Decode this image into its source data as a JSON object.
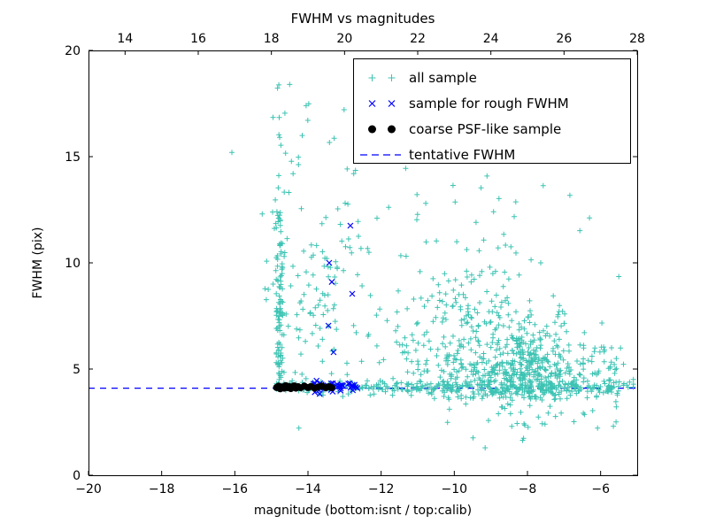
{
  "chart_data": {
    "type": "scatter",
    "title": "FWHM vs magnitudes",
    "xlabel": "magnitude (bottom:isnt / top:calib)",
    "ylabel": "FWHM (pix)",
    "xlim": [
      -20,
      -5
    ],
    "ylim": [
      0,
      20
    ],
    "grid": false,
    "legend_position": "upper right",
    "x_ticks": [
      -20,
      -18,
      -16,
      -14,
      -12,
      -10,
      -8,
      -6
    ],
    "x_tick_labels": [
      "−20",
      "−18",
      "−16",
      "−14",
      "−12",
      "−10",
      "−8",
      "−6"
    ],
    "y_ticks": [
      0,
      5,
      10,
      15,
      20
    ],
    "y_tick_labels": [
      "0",
      "5",
      "10",
      "15",
      "20"
    ],
    "top_axis_ticks": [
      14,
      16,
      18,
      20,
      22,
      24,
      26,
      28
    ],
    "top_axis_tick_labels": [
      "14",
      "16",
      "18",
      "20",
      "22",
      "24",
      "26",
      "28"
    ],
    "top_to_bottom_offset": -33,
    "tentative_fwhm": 4.1,
    "colors": {
      "all_sample": "#3cc3b3",
      "rough": "#0000ff",
      "psf": "#000000",
      "tentative_line": "#0000ff"
    },
    "series": [
      {
        "id": "all-sample",
        "name": "all sample",
        "marker": "plus",
        "color": "#3cc3b3",
        "clusters": [
          {
            "dist": "vstreak",
            "cx": -14.78,
            "sx": 0.07,
            "y": [
              4.0,
              12.8
            ],
            "n": 110
          },
          {
            "dist": "vstreak",
            "cx": -14.72,
            "sx": 0.12,
            "y": [
              12.8,
              18.5
            ],
            "n": 14
          },
          {
            "dist": "gauss",
            "cx": -13.6,
            "cy": 8.6,
            "sx": 0.55,
            "sy": 2.1,
            "n": 70
          },
          {
            "dist": "uniform",
            "x": [
              -14.55,
              -12.35
            ],
            "y": [
              4.5,
              17.5
            ],
            "n": 45
          },
          {
            "dist": "band",
            "x": [
              -14.9,
              -5.1
            ],
            "cy": 4.15,
            "sy": 0.17,
            "n": 300
          },
          {
            "dist": "tail",
            "cx": -9.0,
            "sx": 1.25,
            "ybase": 3.6,
            "yscale": 2.2,
            "n": 420
          },
          {
            "dist": "gauss",
            "cx": -7.8,
            "cy": 4.9,
            "sx": 0.65,
            "sy": 0.85,
            "n": 190
          },
          {
            "dist": "gauss",
            "cx": -5.95,
            "cy": 4.8,
            "sx": 0.45,
            "sy": 0.8,
            "n": 45
          },
          {
            "dist": "tail",
            "cx": -9.6,
            "sx": 1.4,
            "ybase": 6.0,
            "yscale": 3.0,
            "n": 90
          },
          {
            "dist": "uniform",
            "x": [
              -12.2,
              -5.6
            ],
            "y": [
              12.0,
              16.5
            ],
            "n": 25
          },
          {
            "dist": "uniform",
            "x": [
              -10.2,
              -5.5
            ],
            "y": [
              2.2,
              3.6
            ],
            "n": 28
          },
          {
            "dist": "uniform",
            "x": [
              -9.6,
              -7.8
            ],
            "y": [
              1.1,
              2.2
            ],
            "n": 4
          }
        ],
        "points": [
          [
            -16.08,
            15.2
          ],
          [
            -14.5,
            18.4
          ],
          [
            -14.05,
            17.4
          ],
          [
            -12.75,
            14.2
          ],
          [
            -15.25,
            12.3
          ]
        ]
      },
      {
        "id": "rough-fwhm",
        "name": "sample for rough FWHM",
        "marker": "x",
        "color": "#0000ff",
        "clusters": [
          {
            "dist": "band",
            "x": [
              -13.9,
              -12.6
            ],
            "cy": 4.2,
            "sy": 0.12,
            "n": 42
          }
        ],
        "points": [
          [
            -12.84,
            11.75
          ],
          [
            -13.42,
            10.0
          ],
          [
            -13.35,
            9.1
          ],
          [
            -12.79,
            8.54
          ],
          [
            -13.44,
            7.04
          ],
          [
            -13.3,
            5.79
          ]
        ]
      },
      {
        "id": "psf-like",
        "name": "coarse PSF-like sample",
        "marker": "dot",
        "color": "#000000",
        "points": [
          [
            -14.86,
            4.13
          ],
          [
            -14.8,
            4.2
          ],
          [
            -14.76,
            4.07
          ],
          [
            -14.7,
            4.16
          ],
          [
            -14.65,
            4.1
          ],
          [
            -14.61,
            4.22
          ],
          [
            -14.56,
            4.12
          ],
          [
            -14.52,
            4.18
          ],
          [
            -14.47,
            4.08
          ],
          [
            -14.43,
            4.15
          ],
          [
            -14.38,
            4.21
          ],
          [
            -14.33,
            4.1
          ],
          [
            -14.27,
            4.17
          ],
          [
            -14.2,
            4.12
          ],
          [
            -14.1,
            4.2
          ],
          [
            -14.0,
            4.13
          ],
          [
            -13.92,
            4.18
          ],
          [
            -13.82,
            4.1
          ],
          [
            -13.72,
            4.16
          ],
          [
            -13.62,
            4.2
          ],
          [
            -13.52,
            4.12
          ],
          [
            -13.43,
            4.17
          ],
          [
            -13.35,
            4.12
          ]
        ]
      },
      {
        "id": "tentative-fwhm",
        "name": "tentative FWHM",
        "marker": "dashed-line",
        "color": "#0000ff",
        "y": 4.1
      }
    ]
  }
}
